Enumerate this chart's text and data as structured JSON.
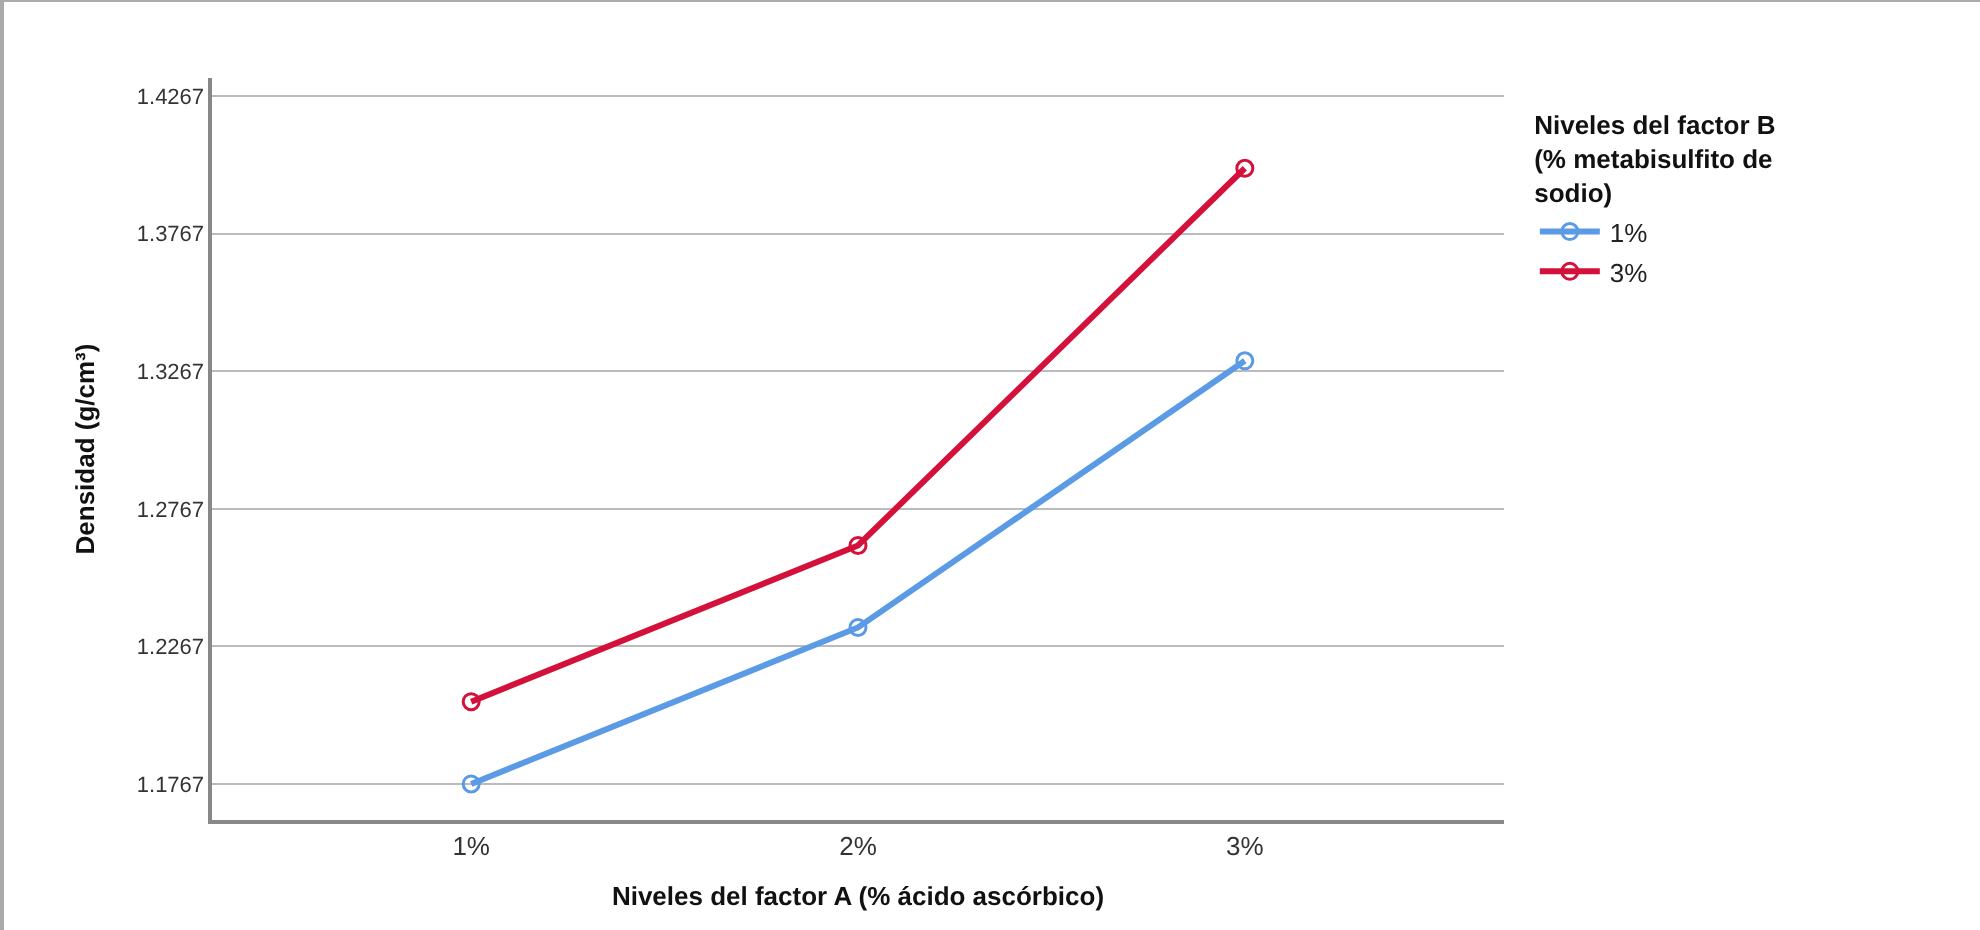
{
  "chart_data": {
    "type": "line",
    "xlabel": "Niveles del factor A (% ácido ascórbico)",
    "ylabel": "Densidad (g/cm³)",
    "legend_title": "Niveles del factor B (% metabisulfito de sodio)",
    "categories": [
      "1%",
      "2%",
      "3%"
    ],
    "series": [
      {
        "name": "1%",
        "color": "#5b9be6",
        "values": [
          1.1767,
          1.2336,
          1.3305
        ]
      },
      {
        "name": "3%",
        "color": "#d3113b",
        "values": [
          1.2066,
          1.2634,
          1.4005
        ]
      }
    ],
    "ylim": [
      1.1636,
      1.4333
    ],
    "yticks": [
      1.1767,
      1.2267,
      1.2767,
      1.3267,
      1.3767,
      1.4267
    ],
    "grid": "y",
    "legend": "top right",
    "marker": "circle",
    "line_style": "solid"
  }
}
